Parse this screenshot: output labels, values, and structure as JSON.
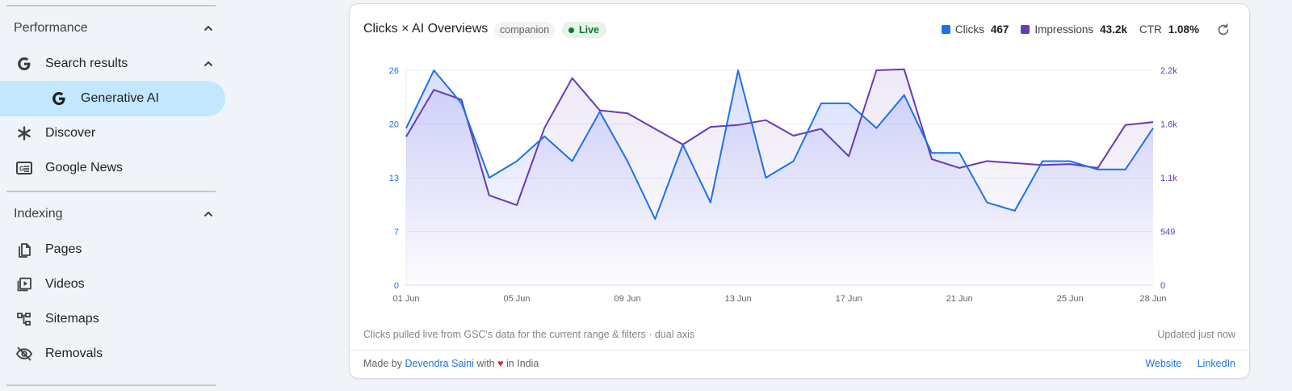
{
  "sidebar": {
    "sections": [
      {
        "label": "Performance"
      },
      {
        "label": "Indexing"
      }
    ],
    "performance_items": [
      {
        "label": "Search results",
        "icon": "google-g-icon"
      },
      {
        "label": "Generative AI",
        "icon": "google-g-icon",
        "selected": true
      },
      {
        "label": "Discover",
        "icon": "asterisk-icon"
      },
      {
        "label": "Google News",
        "icon": "news-icon"
      }
    ],
    "indexing_items": [
      {
        "label": "Pages",
        "icon": "pages-icon"
      },
      {
        "label": "Videos",
        "icon": "videos-icon"
      },
      {
        "label": "Sitemaps",
        "icon": "sitemaps-icon"
      },
      {
        "label": "Removals",
        "icon": "removals-icon"
      }
    ]
  },
  "card": {
    "title": "Clicks × AI Overviews",
    "badge_companion": "companion",
    "badge_live": "Live",
    "stats": {
      "clicks_label": "Clicks",
      "clicks_value": "467",
      "impressions_label": "Impressions",
      "impressions_value": "43.2k",
      "ctr_label": "CTR",
      "ctr_value": "1.08%"
    },
    "footnote": "Clicks pulled live from GSC's data for the current range & filters · dual axis",
    "updated": "Updated just now",
    "made_by_prefix": "Made by",
    "made_by_name": "Devendra Saini",
    "made_by_with": "with",
    "made_by_heart": "♥",
    "made_by_suffix": "in India",
    "link_website": "Website",
    "link_linkedin": "LinkedIn"
  },
  "colors": {
    "clicks": "#1a73e8",
    "impressions": "#673ab7",
    "selected_bg": "#c2e7ff"
  },
  "chart_data": {
    "type": "line",
    "x": [
      "01 Jun",
      "02 Jun",
      "03 Jun",
      "04 Jun",
      "05 Jun",
      "06 Jun",
      "07 Jun",
      "08 Jun",
      "09 Jun",
      "10 Jun",
      "11 Jun",
      "12 Jun",
      "13 Jun",
      "14 Jun",
      "15 Jun",
      "16 Jun",
      "17 Jun",
      "18 Jun",
      "19 Jun",
      "20 Jun",
      "21 Jun",
      "22 Jun",
      "23 Jun",
      "24 Jun",
      "25 Jun",
      "26 Jun",
      "27 Jun",
      "28 Jun"
    ],
    "x_ticks": [
      "01 Jun",
      "05 Jun",
      "09 Jun",
      "13 Jun",
      "17 Jun",
      "21 Jun",
      "25 Jun",
      "28 Jun"
    ],
    "series": [
      {
        "name": "Clicks",
        "axis": "left",
        "values": [
          19,
          26,
          22,
          13,
          15,
          18,
          15,
          21,
          15,
          8,
          17,
          10,
          26,
          13,
          15,
          22,
          22,
          19,
          23,
          16,
          16,
          10,
          9,
          15,
          15,
          14,
          14,
          19
        ]
      },
      {
        "name": "Impressions",
        "axis": "right",
        "values": [
          1520,
          2000,
          1900,
          920,
          820,
          1610,
          2120,
          1790,
          1760,
          1600,
          1440,
          1620,
          1640,
          1690,
          1530,
          1600,
          1320,
          2200,
          2210,
          1290,
          1200,
          1270,
          1250,
          1230,
          1240,
          1200,
          1640,
          1670
        ]
      }
    ],
    "y_left": {
      "ticks": [
        "0",
        "7",
        "13",
        "20",
        "26"
      ],
      "range": [
        0,
        26
      ]
    },
    "y_right": {
      "ticks": [
        "0",
        "549",
        "1.1k",
        "1.6k",
        "2.2k"
      ],
      "range": [
        0,
        2200
      ]
    },
    "grid": true,
    "legend": "top-right"
  }
}
